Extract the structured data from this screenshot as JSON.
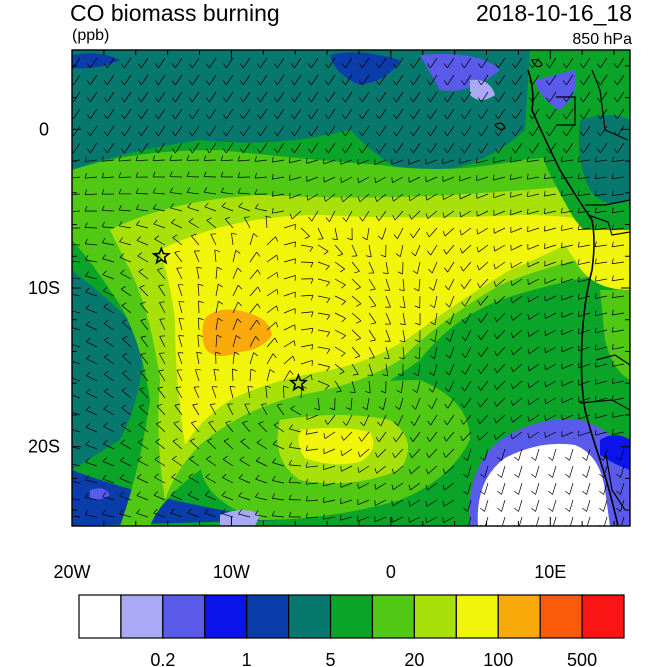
{
  "header": {
    "title": "CO biomass burning",
    "datetime": "2018-10-16_18",
    "units": "(ppb)",
    "level": "850 hPa"
  },
  "map": {
    "lon_labels": [
      "20W",
      "10W",
      "0",
      "10E"
    ],
    "lat_labels": [
      "0",
      "10S",
      "20S"
    ],
    "lon_range": [
      -20,
      15
    ],
    "lat_range": [
      -25,
      5
    ],
    "markers": [
      {
        "name": "star",
        "lon": -14.4,
        "lat": -8.0
      },
      {
        "name": "star",
        "lon": -5.8,
        "lat": -16.0
      }
    ],
    "fill_colors_by_level": [
      "#ffffff",
      "#a9a9f5",
      "#5a5aeb",
      "#0a14eb",
      "#0a3caa",
      "#07786e",
      "#0aa528",
      "#50c814",
      "#a8e10a",
      "#f0f50a",
      "#faaa0a",
      "#fa5a0a",
      "#fa1414"
    ],
    "wind_barbs": "wind barbs drawn over the field"
  },
  "colorbar": {
    "colors": [
      "#ffffff",
      "#a9a9f5",
      "#5a5aeb",
      "#0a14eb",
      "#0a3caa",
      "#07786e",
      "#0aa528",
      "#50c814",
      "#a8e10a",
      "#f0f50a",
      "#faaa0a",
      "#fa5a0a",
      "#fa1414"
    ],
    "labels": [
      "0.2",
      "1",
      "5",
      "20",
      "100",
      "500"
    ]
  }
}
